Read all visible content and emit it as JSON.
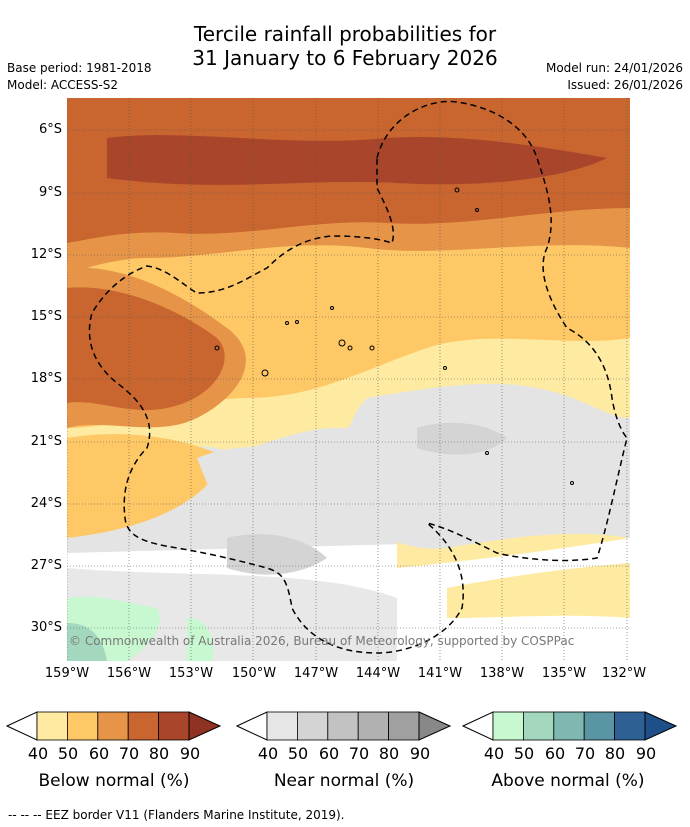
{
  "title": {
    "line1": "Tercile rainfall probabilities for",
    "line2": "31 January to 6 February 2026"
  },
  "meta": {
    "base_period": "Base period: 1981-2018",
    "model": "Model: ACCESS-S2",
    "model_run": "Model run: 24/01/2026",
    "issued": "Issued: 26/01/2026"
  },
  "map": {
    "lat_labels": [
      "6°S",
      "9°S",
      "12°S",
      "15°S",
      "18°S",
      "21°S",
      "24°S",
      "27°S",
      "30°S"
    ],
    "lon_labels": [
      "159°W",
      "156°W",
      "153°W",
      "150°W",
      "147°W",
      "144°W",
      "141°W",
      "138°W",
      "135°W",
      "132°W"
    ],
    "copyright": "© Commonwealth of Australia 2026, Bureau of Meteorology, supported by COSPPac"
  },
  "legends": [
    {
      "name": "below",
      "title": "Below normal (%)",
      "ticks": [
        "40",
        "50",
        "60",
        "70",
        "80",
        "90"
      ],
      "colors": [
        "#feeba1",
        "#fdc865",
        "#e69548",
        "#c9652f",
        "#a8452a",
        "#8f3224"
      ]
    },
    {
      "name": "near",
      "title": "Near normal (%)",
      "ticks": [
        "40",
        "50",
        "60",
        "70",
        "80",
        "90"
      ],
      "colors": [
        "#e6e6e6",
        "#d4d4d4",
        "#c2c2c2",
        "#b1b1b1",
        "#a0a0a0",
        "#888888"
      ]
    },
    {
      "name": "above",
      "title": "Above normal (%)",
      "ticks": [
        "40",
        "50",
        "60",
        "70",
        "80",
        "90"
      ],
      "colors": [
        "#c8f8d0",
        "#a4d8be",
        "#7fb8b0",
        "#5a95a4",
        "#2e6096",
        "#1e4f88"
      ]
    }
  ],
  "footer": "--  --  -- EEZ border V11 (Flanders Marine Institute, 2019)."
}
